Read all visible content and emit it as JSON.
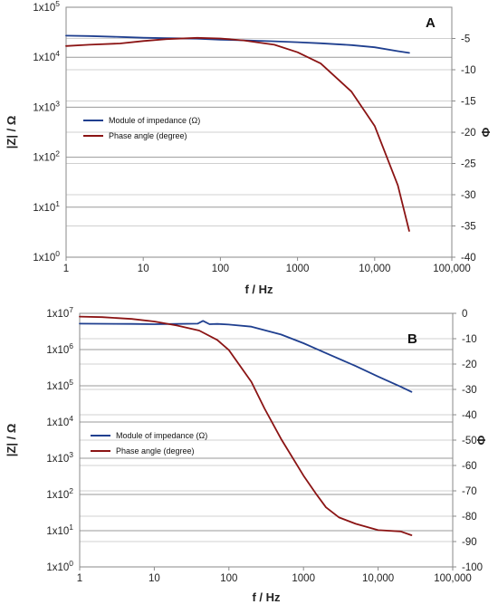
{
  "chart_data": [
    {
      "type": "line",
      "label": "A",
      "xlabel": "f / Hz",
      "ylabel_left": "|Z| / Ω",
      "ylabel_right": "Φ",
      "x_scale": "log",
      "xlim": [
        1,
        100000
      ],
      "x_ticks": [
        "1",
        "10",
        "100",
        "1000",
        "10,000",
        "100,000"
      ],
      "y_left_scale": "log",
      "y_left_lim": [
        1,
        100000
      ],
      "y_left_ticks": [
        "1x10",
        "1x10",
        "1x10",
        "1x10",
        "1x10",
        "1x10"
      ],
      "y_left_tick_exponents": [
        "0",
        "1",
        "2",
        "3",
        "4",
        "5"
      ],
      "y_right_lim": [
        -40,
        0
      ],
      "y_right_ticks": [
        "-5",
        "-10",
        "-15",
        "-20",
        "-25",
        "-30",
        "-35",
        "-40"
      ],
      "legend": {
        "position": "left-middle"
      },
      "series": [
        {
          "name": "Module of impedance (Ω)",
          "color": "#1f3f8f",
          "axis": "left",
          "x": [
            1,
            2,
            5,
            10,
            20,
            50,
            100,
            200,
            500,
            1000,
            2000,
            5000,
            10000,
            20000,
            28000
          ],
          "values": [
            27000,
            26500,
            25500,
            24500,
            24000,
            23500,
            22500,
            21800,
            20800,
            20000,
            19000,
            17500,
            15800,
            13200,
            12200
          ]
        },
        {
          "name": "Phase angle (degree)",
          "color": "#8b1414",
          "axis": "right",
          "x": [
            1,
            2,
            5,
            10,
            20,
            50,
            100,
            200,
            500,
            1000,
            2000,
            5000,
            10000,
            20000,
            28000
          ],
          "values": [
            -6.2,
            -6.0,
            -5.8,
            -5.4,
            -5.1,
            -4.9,
            -5.0,
            -5.3,
            -6.0,
            -7.2,
            -9.0,
            -13.5,
            -19.0,
            -28.5,
            -35.8
          ]
        }
      ]
    },
    {
      "type": "line",
      "label": "B",
      "xlabel": "f / Hz",
      "ylabel_left": "|Z| / Ω",
      "ylabel_right": "Φ",
      "x_scale": "log",
      "xlim": [
        1,
        100000
      ],
      "x_ticks": [
        "1",
        "10",
        "100",
        "1000",
        "10,000",
        "100,000"
      ],
      "y_left_scale": "log",
      "y_left_lim": [
        1,
        10000000
      ],
      "y_left_ticks": [
        "1x10",
        "1x10",
        "1x10",
        "1x10",
        "1x10",
        "1x10",
        "1x10",
        "1x10"
      ],
      "y_left_tick_exponents": [
        "0",
        "1",
        "2",
        "3",
        "4",
        "5",
        "6",
        "7"
      ],
      "y_right_lim": [
        -100,
        0
      ],
      "y_right_ticks": [
        "0",
        "-10",
        "-20",
        "-30",
        "-40",
        "-50",
        "-60",
        "-70",
        "-80",
        "-90",
        "-100"
      ],
      "legend": {
        "position": "left-middle"
      },
      "series": [
        {
          "name": "Module of impedance (Ω)",
          "color": "#1f3f8f",
          "axis": "left",
          "x": [
            1,
            5,
            10,
            20,
            38,
            45,
            55,
            70,
            100,
            200,
            500,
            1000,
            2000,
            5000,
            10000,
            20000,
            28000
          ],
          "values": [
            5200000,
            5100000,
            5000000,
            5100000,
            5200000,
            6200000,
            5000000,
            5100000,
            4900000,
            4300000,
            2600000,
            1500000,
            800000,
            350000,
            180000,
            95000,
            68000
          ]
        },
        {
          "name": "Phase angle (degree)",
          "color": "#8b1414",
          "axis": "right",
          "x": [
            1,
            2,
            5,
            10,
            20,
            40,
            70,
            100,
            200,
            300,
            500,
            1000,
            1500,
            2000,
            3000,
            5000,
            10000,
            20000,
            28000
          ],
          "values": [
            -1.3,
            -1.5,
            -2.2,
            -3.2,
            -4.8,
            -6.8,
            -10.5,
            -14.5,
            -27.0,
            -37.5,
            -49.5,
            -64.0,
            -71.5,
            -76.5,
            -80.5,
            -83.0,
            -85.5,
            -86.0,
            -87.5
          ]
        }
      ]
    }
  ]
}
